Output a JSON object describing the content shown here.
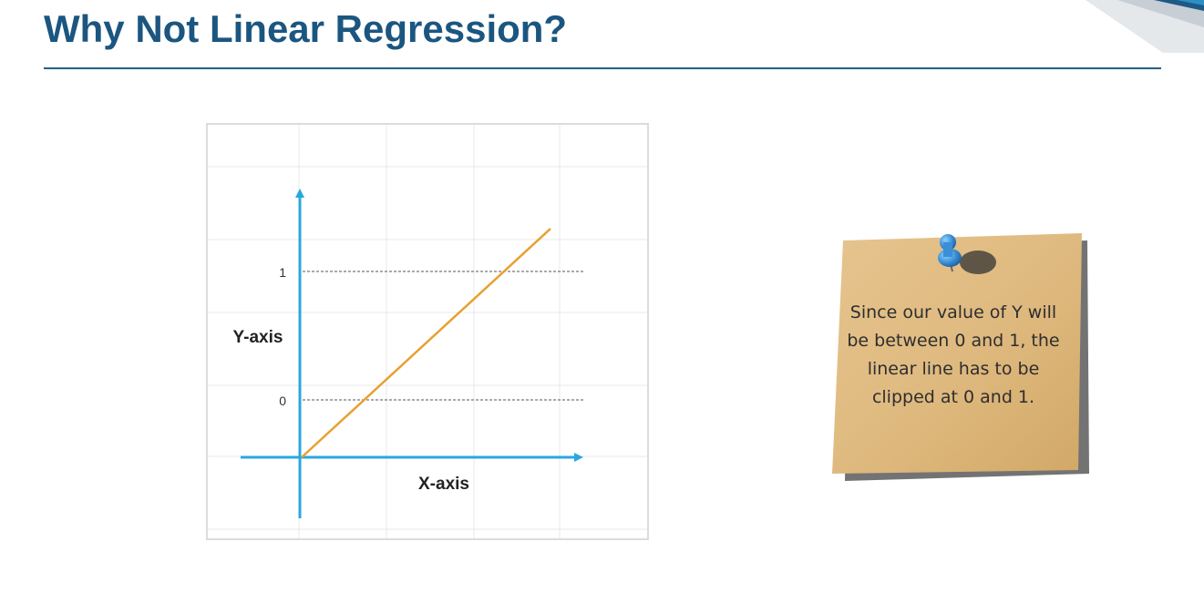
{
  "slide": {
    "title": "Why Not Linear Regression?"
  },
  "chart_data": {
    "type": "line",
    "xlabel": "X-axis",
    "ylabel": "Y-axis",
    "y_ticks": [
      "1",
      "0"
    ],
    "reference_lines": [
      "1",
      "0"
    ],
    "line_color": "#e8a030",
    "axis_color": "#2aa7df",
    "grid": true
  },
  "note": {
    "text": "Since our value of Y will be between 0 and 1, the linear line has to be clipped at 0 and 1.",
    "pin_color": "#3a8fd6",
    "paper_color": "#e3bf86"
  }
}
